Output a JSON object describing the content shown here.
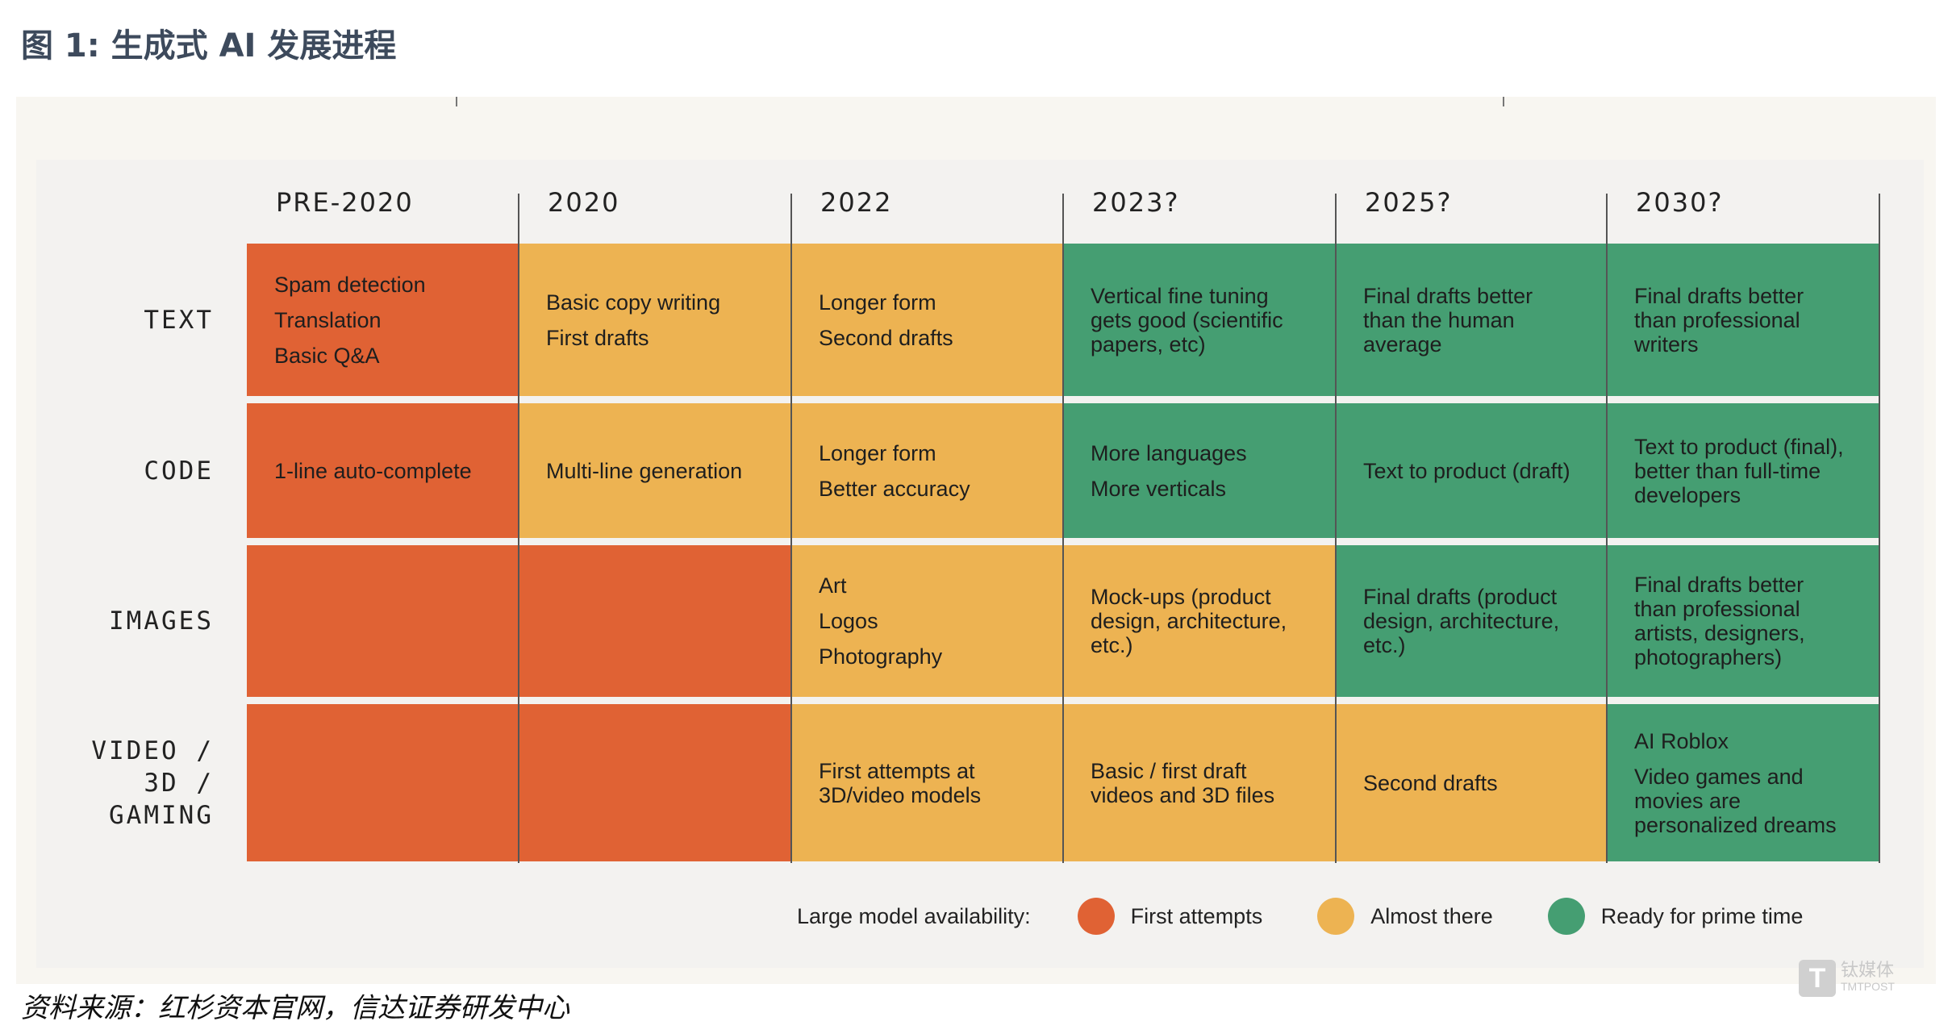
{
  "title": "图 1:  生成式 AI 发展进程",
  "columns": [
    "PRE-2020",
    "2020",
    "2022",
    "2023?",
    "2025?",
    "2030?"
  ],
  "rows": [
    {
      "label": "TEXT",
      "cells": [
        {
          "lines": [
            "Spam detection",
            "Translation",
            "Basic Q&A"
          ],
          "status": "o"
        },
        {
          "lines": [
            "Basic copy writing",
            "First drafts"
          ],
          "status": "y"
        },
        {
          "lines": [
            "Longer form",
            "Second drafts"
          ],
          "status": "y"
        },
        {
          "lines": [
            "Vertical fine tuning gets good (scientific papers, etc)"
          ],
          "status": "g"
        },
        {
          "lines": [
            "Final drafts better than the human average"
          ],
          "status": "g"
        },
        {
          "lines": [
            "Final drafts better than professional writers"
          ],
          "status": "g"
        }
      ]
    },
    {
      "label": "CODE",
      "cells": [
        {
          "lines": [
            "1-line auto-complete"
          ],
          "status": "o"
        },
        {
          "lines": [
            "Multi-line generation"
          ],
          "status": "y"
        },
        {
          "lines": [
            "Longer form",
            "Better accuracy"
          ],
          "status": "y"
        },
        {
          "lines": [
            "More languages",
            "More verticals"
          ],
          "status": "g"
        },
        {
          "lines": [
            "Text to product (draft)"
          ],
          "status": "g"
        },
        {
          "lines": [
            "Text to product (final), better than full-time developers"
          ],
          "status": "g"
        }
      ]
    },
    {
      "label": "IMAGES",
      "cells": [
        {
          "lines": [],
          "status": "o"
        },
        {
          "lines": [],
          "status": "o"
        },
        {
          "lines": [
            "Art",
            "Logos",
            "Photography"
          ],
          "status": "y"
        },
        {
          "lines": [
            "Mock-ups (product design, architecture, etc.)"
          ],
          "status": "y"
        },
        {
          "lines": [
            "Final drafts (product design, architecture, etc.)"
          ],
          "status": "g"
        },
        {
          "lines": [
            "Final drafts better than professional artists, designers, photographers)"
          ],
          "status": "g"
        }
      ]
    },
    {
      "label": "VIDEO / 3D / GAMING",
      "cells": [
        {
          "lines": [],
          "status": "o"
        },
        {
          "lines": [],
          "status": "o"
        },
        {
          "lines": [
            "First attempts at 3D/video models"
          ],
          "status": "y"
        },
        {
          "lines": [
            "Basic / first draft videos and 3D files"
          ],
          "status": "y"
        },
        {
          "lines": [
            "Second drafts"
          ],
          "status": "y"
        },
        {
          "lines": [
            "AI Roblox",
            "Video games and movies are personalized dreams"
          ],
          "status": "g"
        }
      ]
    }
  ],
  "legend": {
    "label": "Large model availability:",
    "items": [
      {
        "label": "First attempts",
        "color": "#e06234"
      },
      {
        "label": "Almost there",
        "color": "#edb352"
      },
      {
        "label": "Ready for prime time",
        "color": "#459e72"
      }
    ]
  },
  "source": "资料来源：红杉资本官网，信达证券研发中心",
  "watermark": {
    "brand": "钛媒体",
    "sub": "TMTPOST"
  }
}
